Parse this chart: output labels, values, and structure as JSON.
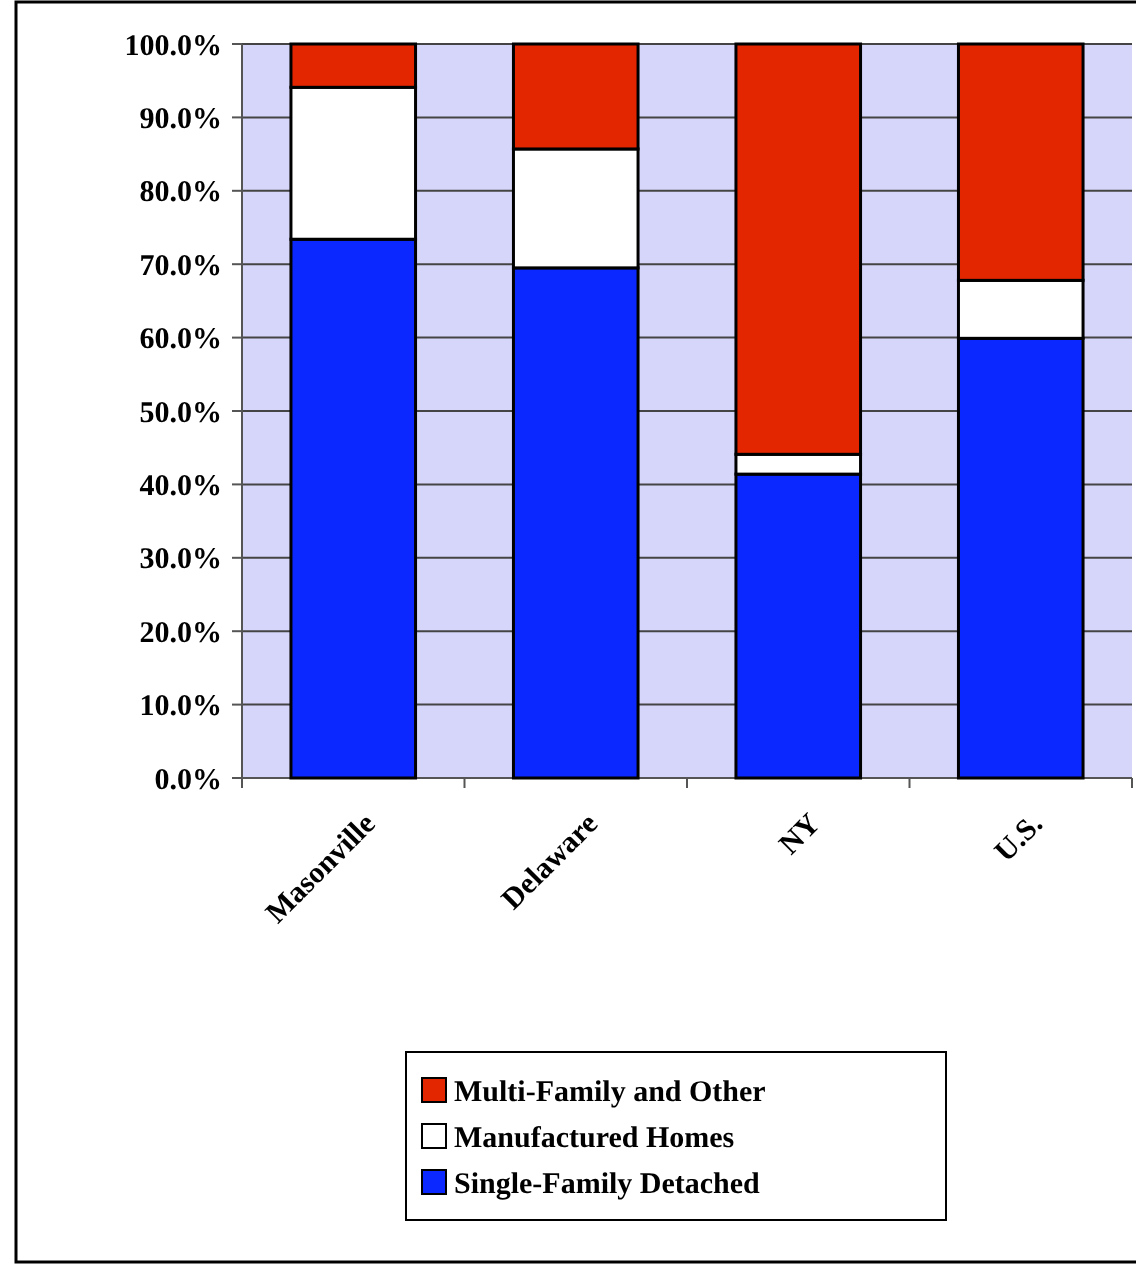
{
  "chart_data": {
    "type": "bar",
    "stacked": true,
    "categories": [
      "Masonville",
      "Delaware",
      "NY",
      "U.S."
    ],
    "series": [
      {
        "name": "Single-Family Detached",
        "color": "#0a28ff",
        "values": [
          73.4,
          69.5,
          41.4,
          59.9
        ]
      },
      {
        "name": "Manufactured Homes",
        "color": "#ffffff",
        "values": [
          20.7,
          16.2,
          2.7,
          7.9
        ]
      },
      {
        "name": "Multi-Family and Other",
        "color": "#e42600",
        "values": [
          5.9,
          14.3,
          55.9,
          32.2
        ]
      }
    ],
    "ylim": [
      0,
      100
    ],
    "yticks": [
      {
        "value": 0,
        "label": "0.0%"
      },
      {
        "value": 10,
        "label": "10.0%"
      },
      {
        "value": 20,
        "label": "20.0%"
      },
      {
        "value": 30,
        "label": "30.0%"
      },
      {
        "value": 40,
        "label": "40.0%"
      },
      {
        "value": 50,
        "label": "50.0%"
      },
      {
        "value": 60,
        "label": "60.0%"
      },
      {
        "value": 70,
        "label": "70.0%"
      },
      {
        "value": 80,
        "label": "80.0%"
      },
      {
        "value": 90,
        "label": "90.0%"
      },
      {
        "value": 100,
        "label": "100.0%"
      }
    ],
    "grid": "y",
    "legend": "bottom"
  }
}
